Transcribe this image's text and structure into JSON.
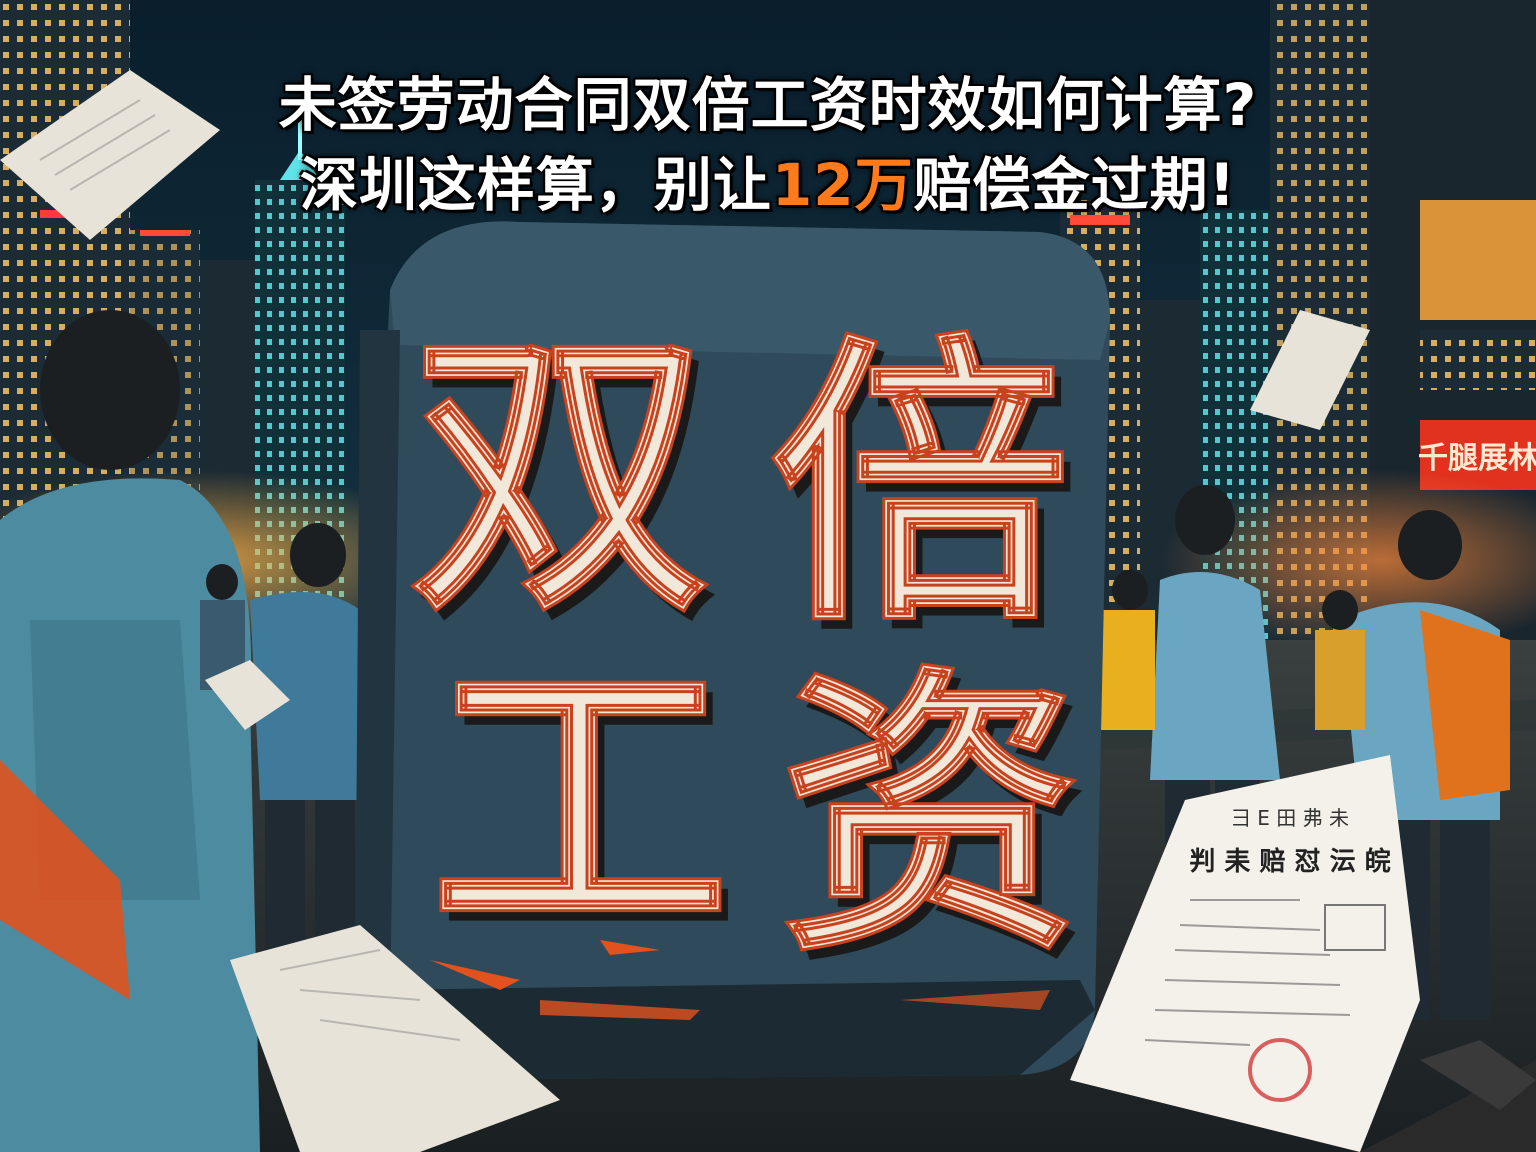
{
  "headline": {
    "line1": "未签劳动合同双倍工资时效如何计算?",
    "line2_prefix": "深圳这样算，别让",
    "line2_highlight": "12万",
    "line2_suffix": "赔偿金过期!"
  },
  "block_text": {
    "char1": "双",
    "char2": "倍",
    "char3": "工",
    "char4": "资"
  },
  "sign_text": "千腿展林",
  "document": {
    "title": "彐 E 田 弗 未",
    "subtitle": "判 耒 赔 怼 沄 皖"
  },
  "colors": {
    "sky": "#0b1a26",
    "block": "#2f4a5a",
    "letters": "#f1e8da",
    "accent": "#e2521e",
    "highlight": "#ff7a1a"
  }
}
